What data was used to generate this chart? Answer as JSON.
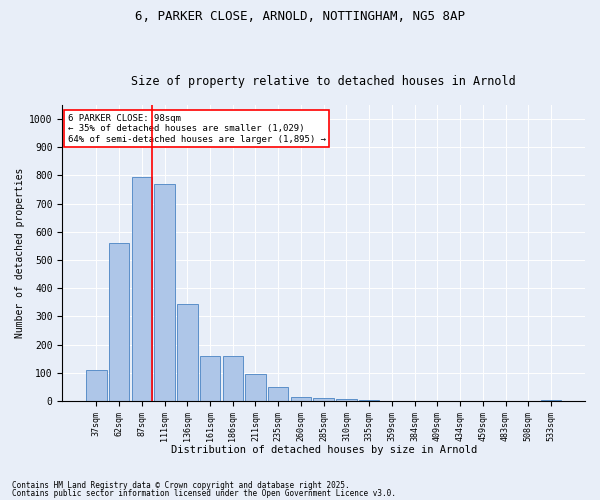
{
  "title1": "6, PARKER CLOSE, ARNOLD, NOTTINGHAM, NG5 8AP",
  "title2": "Size of property relative to detached houses in Arnold",
  "xlabel": "Distribution of detached houses by size in Arnold",
  "ylabel": "Number of detached properties",
  "categories": [
    "37sqm",
    "62sqm",
    "87sqm",
    "111sqm",
    "136sqm",
    "161sqm",
    "186sqm",
    "211sqm",
    "235sqm",
    "260sqm",
    "285sqm",
    "310sqm",
    "335sqm",
    "359sqm",
    "384sqm",
    "409sqm",
    "434sqm",
    "459sqm",
    "483sqm",
    "508sqm",
    "533sqm"
  ],
  "values": [
    110,
    560,
    795,
    770,
    345,
    160,
    160,
    95,
    50,
    15,
    10,
    8,
    3,
    2,
    0,
    0,
    0,
    0,
    0,
    0,
    5
  ],
  "bar_color": "#aec6e8",
  "bar_edge_color": "#5b8fc9",
  "vline_x_index": 2,
  "vline_color": "red",
  "annotation_title": "6 PARKER CLOSE: 98sqm",
  "annotation_line2": "← 35% of detached houses are smaller (1,029)",
  "annotation_line3": "64% of semi-detached houses are larger (1,895) →",
  "annotation_box_color": "red",
  "annotation_box_fill": "white",
  "ylim": [
    0,
    1050
  ],
  "yticks": [
    0,
    100,
    200,
    300,
    400,
    500,
    600,
    700,
    800,
    900,
    1000
  ],
  "footnote1": "Contains HM Land Registry data © Crown copyright and database right 2025.",
  "footnote2": "Contains public sector information licensed under the Open Government Licence v3.0.",
  "bg_color": "#e8eef8",
  "plot_bg_color": "#e8eef8",
  "title1_fontsize": 9,
  "title2_fontsize": 8.5
}
